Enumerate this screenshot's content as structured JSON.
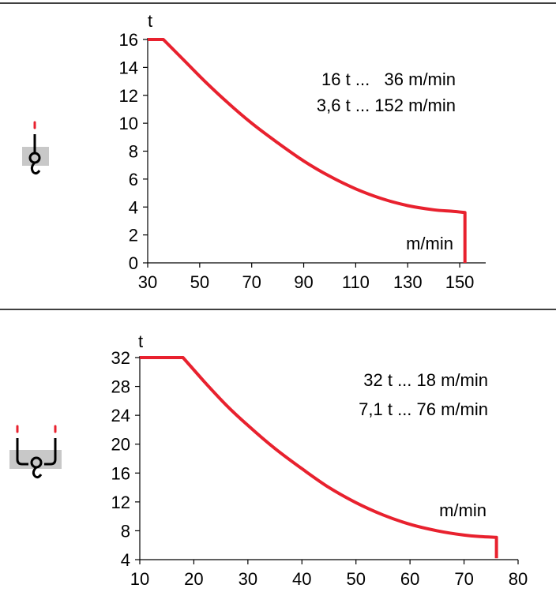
{
  "colors": {
    "curve": "#e8212e",
    "axis": "#000000",
    "icon_bg": "#c8c8c8",
    "hook_tip": "#e8212e"
  },
  "icons": [
    "single-hook-icon",
    "double-hook-icon"
  ],
  "chart_data": [
    {
      "type": "line",
      "ylabel": "t",
      "xlabel": "m/min",
      "xlim": [
        30,
        160
      ],
      "ylim": [
        0,
        16
      ],
      "xticks": [
        30,
        50,
        70,
        90,
        110,
        130,
        150
      ],
      "yticks": [
        0,
        2,
        4,
        6,
        8,
        10,
        12,
        14,
        16
      ],
      "annotations": [
        "16 t ...   36 m/min",
        "3,6 t ... 152 m/min"
      ],
      "series": [
        {
          "x": [
            30,
            36,
            44,
            52,
            60,
            70,
            80,
            90,
            100,
            110,
            120,
            130,
            140,
            147,
            152,
            152
          ],
          "y": [
            16,
            16,
            14.5,
            13.0,
            11.6,
            10.0,
            8.6,
            7.3,
            6.2,
            5.3,
            4.6,
            4.1,
            3.8,
            3.7,
            3.6,
            0
          ]
        }
      ]
    },
    {
      "type": "line",
      "ylabel": "t",
      "xlabel": "m/min",
      "xlim": [
        10,
        80
      ],
      "ylim": [
        4,
        32
      ],
      "xticks": [
        10,
        20,
        30,
        40,
        50,
        60,
        70,
        80
      ],
      "yticks": [
        4,
        8,
        12,
        16,
        20,
        24,
        28,
        32
      ],
      "annotations": [
        "32 t ... 18 m/min",
        "7,1 t ... 76 m/min"
      ],
      "series": [
        {
          "x": [
            10,
            18,
            22,
            26,
            30,
            35,
            40,
            45,
            50,
            55,
            60,
            65,
            70,
            73,
            76,
            76
          ],
          "y": [
            32,
            32,
            28.6,
            25.4,
            22.6,
            19.4,
            16.6,
            14.0,
            11.9,
            10.2,
            8.9,
            8.0,
            7.4,
            7.2,
            7.1,
            4.2
          ]
        }
      ]
    }
  ]
}
